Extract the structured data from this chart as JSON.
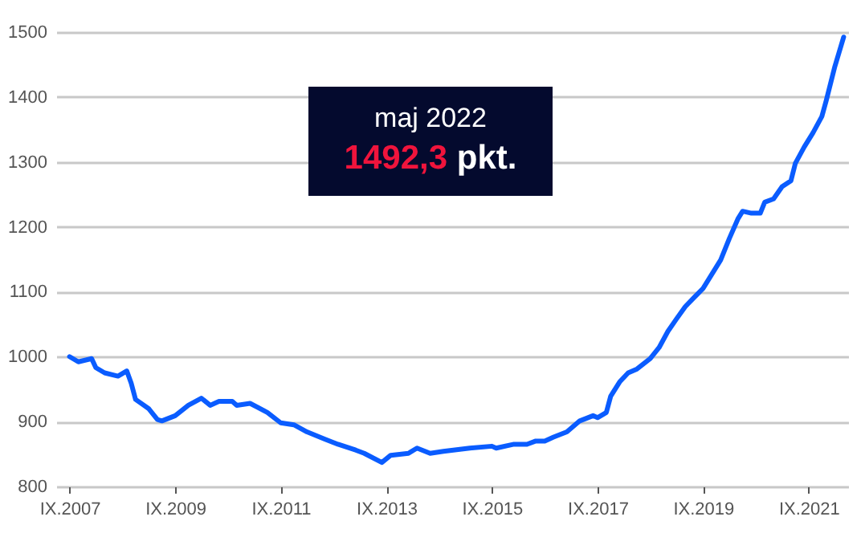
{
  "chart_data": {
    "type": "line",
    "x": [
      "2007-09",
      "2007-11",
      "2008-02",
      "2008-03",
      "2008-05",
      "2008-08",
      "2008-10",
      "2008-11",
      "2008-12",
      "2009-03",
      "2009-05",
      "2009-06",
      "2009-09",
      "2009-12",
      "2010-03",
      "2010-05",
      "2010-07",
      "2010-10",
      "2010-11",
      "2011-02",
      "2011-06",
      "2011-09",
      "2011-12",
      "2012-03",
      "2012-07",
      "2012-10",
      "2013-02",
      "2013-04",
      "2013-08",
      "2013-10",
      "2014-02",
      "2014-04",
      "2014-07",
      "2014-10",
      "2015-04",
      "2015-09",
      "2015-10",
      "2016-02",
      "2016-05",
      "2016-07",
      "2016-09",
      "2016-11",
      "2017-02",
      "2017-05",
      "2017-08",
      "2017-09",
      "2017-11",
      "2017-12",
      "2018-02",
      "2018-04",
      "2018-06",
      "2018-09",
      "2018-11",
      "2019-01",
      "2019-03",
      "2019-05",
      "2019-07",
      "2019-09",
      "2019-11",
      "2020-01",
      "2020-03",
      "2020-05",
      "2020-06",
      "2020-08",
      "2020-10",
      "2020-11",
      "2021-01",
      "2021-03",
      "2021-05",
      "2021-06",
      "2021-08",
      "2021-10",
      "2021-12",
      "2022-01",
      "2022-03",
      "2022-05"
    ],
    "series": [
      {
        "color": "#0a5cff",
        "values": [
          1000,
          992,
          997,
          983,
          975,
          970,
          978,
          959,
          934,
          920,
          903,
          901,
          909,
          925,
          936,
          925,
          931,
          931,
          925,
          928,
          914,
          898,
          895,
          884,
          873,
          865,
          856,
          851,
          837,
          848,
          851,
          859,
          851,
          854,
          859,
          862,
          859,
          865,
          865,
          870,
          870,
          876,
          884,
          901,
          909,
          906,
          914,
          939,
          961,
          975,
          981,
          997,
          1014,
          1039,
          1058,
          1077,
          1091,
          1105,
          1127,
          1149,
          1182,
          1213,
          1224,
          1221,
          1221,
          1238,
          1243,
          1262,
          1271,
          1298,
          1323,
          1345,
          1370,
          1395,
          1447,
          1492.3
        ]
      }
    ],
    "xlim": [
      "2007-06",
      "2022-06"
    ],
    "xticks": [
      {
        "value": "2007-09",
        "label": "IX.2007"
      },
      {
        "value": "2009-09",
        "label": "IX.2009"
      },
      {
        "value": "2011-09",
        "label": "IX.2011"
      },
      {
        "value": "2013-09",
        "label": "IX.2013"
      },
      {
        "value": "2015-09",
        "label": "IX.2015"
      },
      {
        "value": "2017-09",
        "label": "IX.2017"
      },
      {
        "value": "2019-09",
        "label": "IX.2019"
      },
      {
        "value": "2021-09",
        "label": "IX.2021"
      }
    ],
    "ylim": [
      800,
      1500
    ],
    "yticks": [
      800,
      900,
      1000,
      1100,
      1200,
      1300,
      1400,
      1500
    ],
    "grid": "y",
    "marker": "none",
    "line_style": "solid",
    "annotations": [
      "maj 2022",
      "1492,3 pkt."
    ]
  }
}
